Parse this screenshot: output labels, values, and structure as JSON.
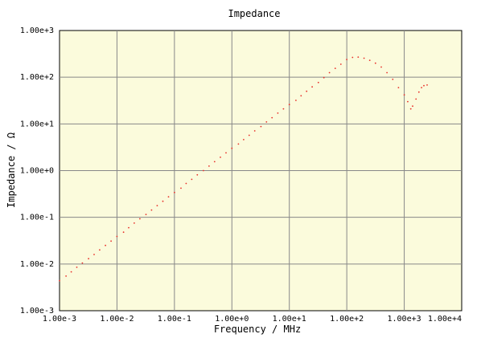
{
  "chart_data": {
    "type": "scatter",
    "title": "Impedance",
    "xlabel": "Frequency / MHz",
    "ylabel": "Impedance / Ω",
    "x_scale": "log",
    "y_scale": "log",
    "xlim": [
      0.001,
      10000
    ],
    "ylim": [
      0.001,
      1000
    ],
    "x_tick_labels": [
      "1.00e-3",
      "1.00e-2",
      "1.00e-1",
      "1.00e+0",
      "1.00e+1",
      "1.00e+2",
      "1.00e+3",
      "1.00e+4"
    ],
    "y_tick_labels": [
      "1.00e+3",
      "1.00e+2",
      "1.00e+1",
      "1.00e+0",
      "1.00e-1",
      "1.00e-2",
      "1.00e-3"
    ],
    "grid": "major",
    "colors": {
      "plot_background": "#fbfbdc",
      "grid": "#888888",
      "marker": "#e8302a",
      "axis": "#000000"
    },
    "series": [
      {
        "x": [
          0.001,
          0.0013,
          0.0016,
          0.002,
          0.0025,
          0.0032,
          0.004,
          0.005,
          0.0063,
          0.0079,
          0.01,
          0.013,
          0.016,
          0.02,
          0.025,
          0.032,
          0.04,
          0.05,
          0.063,
          0.079,
          0.1,
          0.13,
          0.16,
          0.2,
          0.25,
          0.32,
          0.4,
          0.5,
          0.63,
          0.79,
          1,
          1.3,
          1.6,
          2,
          2.5,
          3.2,
          4,
          5,
          6.3,
          7.9,
          10,
          13,
          16,
          20,
          25,
          32,
          40,
          50,
          63,
          79,
          100,
          126,
          158,
          200,
          251,
          316,
          398,
          501,
          631,
          794,
          1000,
          1150,
          1300,
          1400,
          1600,
          1800,
          2000,
          2200,
          2500
        ],
        "y": [
          0.0044,
          0.0055,
          0.0068,
          0.0085,
          0.0105,
          0.013,
          0.016,
          0.02,
          0.025,
          0.031,
          0.039,
          0.048,
          0.06,
          0.075,
          0.093,
          0.115,
          0.143,
          0.178,
          0.22,
          0.275,
          0.34,
          0.42,
          0.53,
          0.65,
          0.81,
          1.0,
          1.25,
          1.55,
          1.93,
          2.4,
          3.0,
          3.7,
          4.6,
          5.7,
          7.1,
          8.8,
          11,
          13.6,
          17,
          21,
          26,
          32,
          40,
          50,
          62,
          77,
          98,
          125,
          155,
          190,
          240,
          265,
          270,
          255,
          230,
          200,
          165,
          125,
          90,
          60,
          42,
          30,
          21,
          24,
          34,
          48,
          60,
          66,
          68
        ]
      }
    ]
  }
}
